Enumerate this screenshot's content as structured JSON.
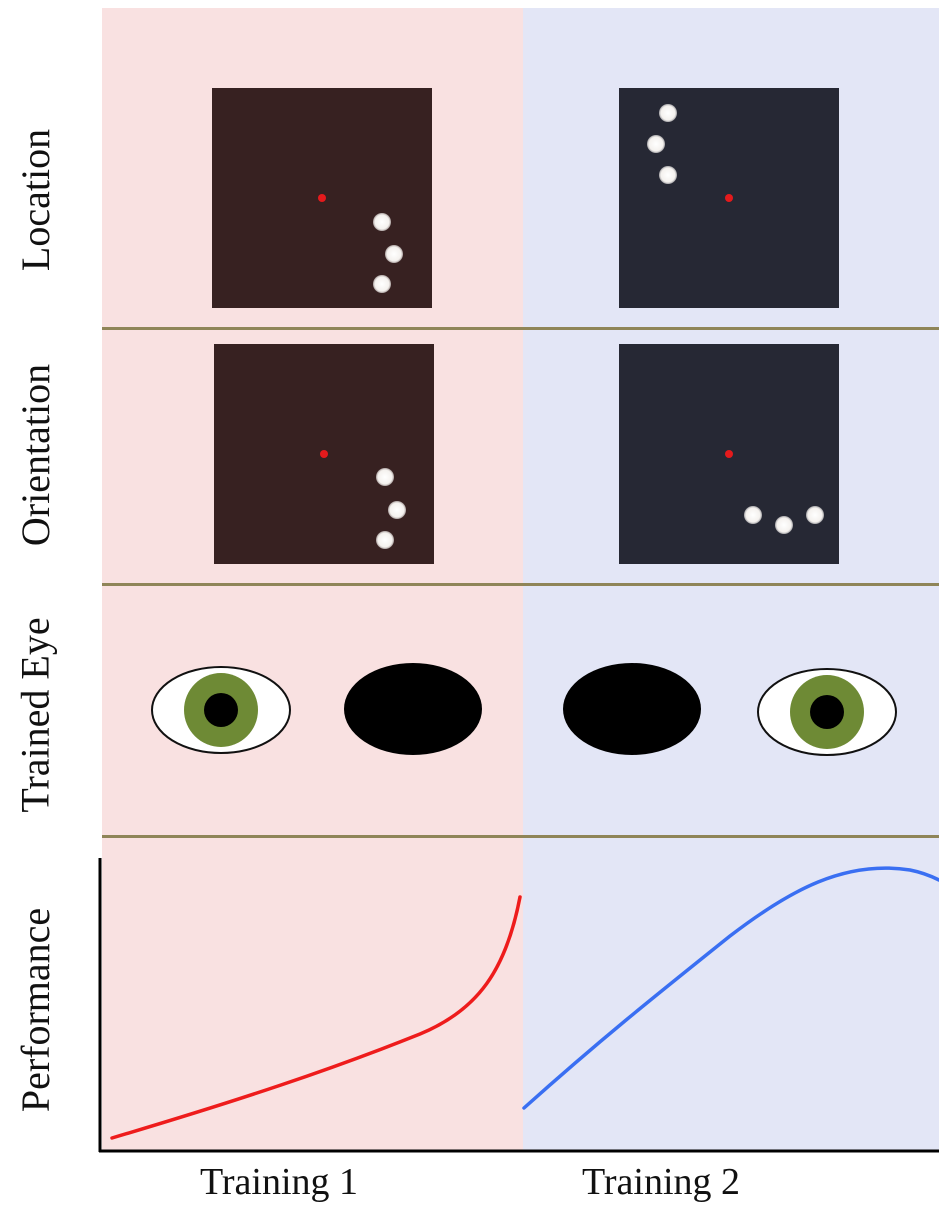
{
  "colors": {
    "training1_bg": "#f9e1e1",
    "training2_bg": "#e3e6f6",
    "stim1_bg": "#372121",
    "stim2_bg": "#262834",
    "divider": "#8f8558",
    "fixation": "#e41a1c",
    "iris": "#6e8a35",
    "training1_curve": "#ee1c1c",
    "training2_curve": "#3a6ff2"
  },
  "row_labels": {
    "location": "Location",
    "orientation": "Orientation",
    "trained_eye": "Trained Eye",
    "performance": "Performance"
  },
  "x_labels": {
    "training1": "Training 1",
    "training2": "Training 2"
  },
  "icons": {
    "open_eye": "open-eye-icon",
    "occluded_eye": "eye-patch-icon"
  }
}
